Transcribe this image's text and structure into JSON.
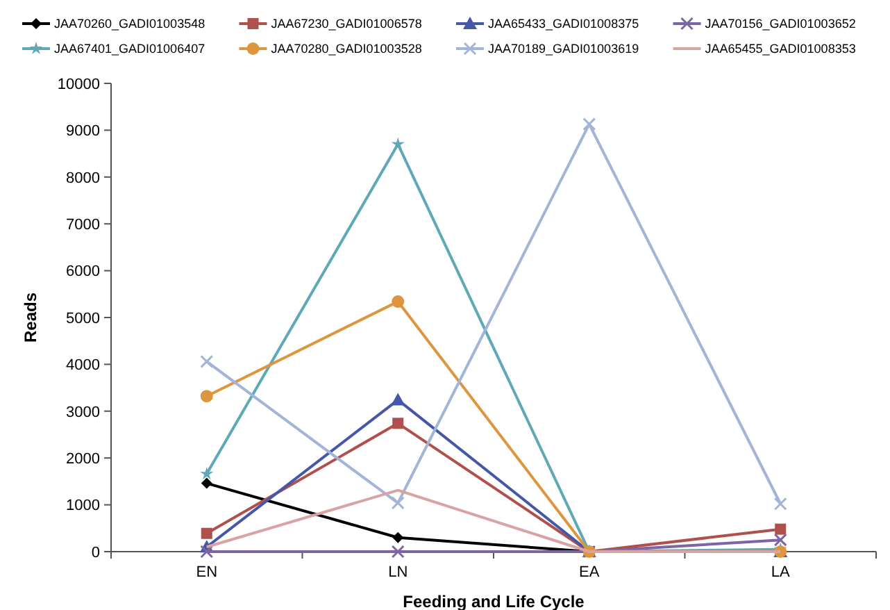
{
  "chart_data": {
    "type": "line",
    "xlabel": "Feeding and Life Cycle",
    "ylabel": "Reads",
    "categories": [
      "EN",
      "LN",
      "EA",
      "LA"
    ],
    "ylim": [
      0,
      10000
    ],
    "yticks": [
      0,
      1000,
      2000,
      3000,
      4000,
      5000,
      6000,
      7000,
      8000,
      9000,
      10000
    ],
    "legend": "top",
    "grid": false,
    "series": [
      {
        "name": "JAA70260_GADI01003548",
        "color": "#000000",
        "marker": "diamond",
        "values": [
          1460,
          300,
          0,
          0
        ]
      },
      {
        "name": "JAA67230_GADI01006578",
        "color": "#b0504c",
        "marker": "square",
        "values": [
          390,
          2740,
          0,
          480
        ]
      },
      {
        "name": "JAA65433_GADI01008375",
        "color": "#4457a8",
        "marker": "triangle",
        "values": [
          100,
          3240,
          0,
          0
        ]
      },
      {
        "name": "JAA70156_GADI01003652",
        "color": "#7d64a4",
        "marker": "cross",
        "values": [
          0,
          0,
          0,
          250
        ]
      },
      {
        "name": "JAA67401_GADI01006407",
        "color": "#5fa8b8",
        "marker": "star",
        "values": [
          1660,
          8700,
          0,
          50
        ]
      },
      {
        "name": "JAA70280_GADI01003528",
        "color": "#de963e",
        "marker": "circle",
        "values": [
          3320,
          5340,
          0,
          0
        ]
      },
      {
        "name": "JAA70189_GADI01003619",
        "color": "#a2b4d8",
        "marker": "cross",
        "values": [
          4060,
          1040,
          9130,
          1020
        ]
      },
      {
        "name": "JAA65455_GADI01008353",
        "color": "#d8a4a2",
        "marker": "none",
        "values": [
          100,
          1310,
          0,
          0
        ]
      }
    ]
  }
}
